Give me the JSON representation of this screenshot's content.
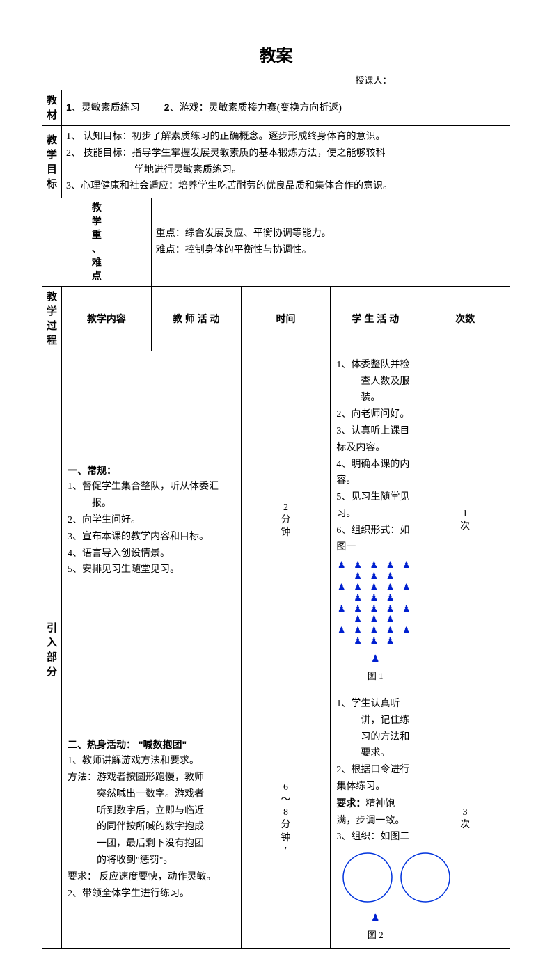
{
  "title": "教案",
  "instructor_label": "授课人：",
  "row_material": {
    "label": "教材",
    "item1_num": "1",
    "item1_text": "、灵敏素质练习",
    "item2_num": "2",
    "item2_text": "、游戏：灵敏素质接力赛(",
    "item2_suffix": "变换方向折返)"
  },
  "row_goals": {
    "label": "教学目标",
    "line1": "1、 认知目标：初步了解素质练习的正确概念。逐步形成终身体育的意识。",
    "line2a": "2、 技能目标：指导学生掌握发展灵敏素质的基本锻炼方法，使之能够较科",
    "line2b": "学地进行灵敏素质练习。",
    "line3": "3、心理健康和社会适应：培养学生吃苦耐劳的优良品质和集体合作的意识。"
  },
  "row_keys": {
    "label": "教学重、难点",
    "key_label": "重点：",
    "key_text": "综合发展反应、平衡协调等能力。",
    "diff_label": "难点：",
    "diff_text": "控制身体的平衡性与协调性。"
  },
  "process": {
    "label": "教学过程",
    "header_inner": "教学内容",
    "header_teacher": "教 师 活 动",
    "header_time": "时间",
    "header_student": "学 生 活 动",
    "header_count": "次数"
  },
  "intro": {
    "label": "引入部分",
    "sec1": {
      "title": "一、常规：",
      "t1": "1、督促学生集合整队，听从体委汇报。",
      "t2": "2、向学生问好。",
      "t3": "3、宣布本课的教学内容和目标。",
      "t4": "4、语言导入创设情景。",
      "t5": "5、安排见习生随堂见习。",
      "time": "2分钟",
      "s1": "1、体委整队并检查人数及服装。",
      "s2": "2、向老师问好。",
      "s3": "3、认真听上课目标及内容。",
      "s4": "4、明确本课的内容。",
      "s5": "5、见习生随堂见习。",
      "s6": "6、组织形式：如图一",
      "fig_caption": "图 1",
      "count": "1次",
      "grid_row": "👤👤👤👤👤👤👤👤",
      "grid_teacher": "♟"
    },
    "sec2": {
      "title": "二、热身活动：  \"喊数抱团\"",
      "t1": "1、教师讲解游戏方法和要求。",
      "method_label": "方法：",
      "method_text": "游戏者按圆形跑慢，教师突然喊出一数字。游戏者听到数字后，立即与临近的同伴按所喊的数字抱成一团，最后剩下没有抱团的将收到\"惩罚\"。",
      "req_label": "要求：",
      "req_text": " 反应速度要快，动作灵敏。",
      "t2": "2、带领全体学生进行练习。",
      "time": "6～8分钟'",
      "s1": "1、学生认真听讲，记住练习的方法和要求。",
      "s2": "2、根据口令进行集体练习。",
      "s_req_label": "要求：",
      "s_req_text": "精神饱满，步调一致。",
      "s3": "3、组织：如图二",
      "fig_caption": "图 2",
      "count": "3次",
      "circle_stroke": "#0033dd",
      "teacher_icon": "♟"
    }
  }
}
